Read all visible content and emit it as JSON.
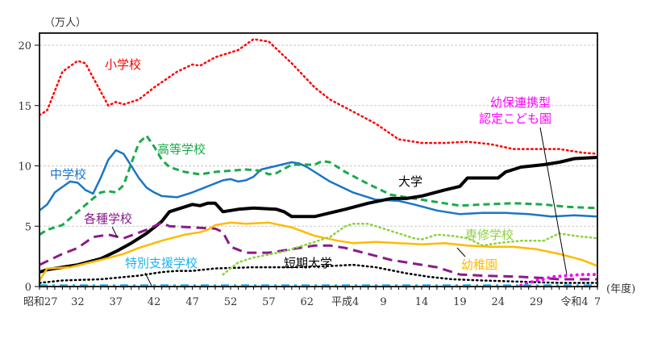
{
  "chart_data": {
    "type": "line",
    "unit_label": "（万人）",
    "x_unit_label": "(年度)",
    "ylim": [
      0,
      21
    ],
    "xlim": [
      1952,
      2025
    ],
    "grid": true,
    "yticks": [
      0,
      5,
      10,
      15,
      20
    ],
    "xticks": [
      {
        "year": 1952,
        "label": "昭和27"
      },
      {
        "year": 1957,
        "label": "32"
      },
      {
        "year": 1962,
        "label": "37"
      },
      {
        "year": 1967,
        "label": "42"
      },
      {
        "year": 1972,
        "label": "47"
      },
      {
        "year": 1977,
        "label": "52"
      },
      {
        "year": 1982,
        "label": "57"
      },
      {
        "year": 1987,
        "label": "62"
      },
      {
        "year": 1992,
        "label": "平成4"
      },
      {
        "year": 1997,
        "label": "9"
      },
      {
        "year": 2002,
        "label": "14"
      },
      {
        "year": 2007,
        "label": "19"
      },
      {
        "year": 2012,
        "label": "24"
      },
      {
        "year": 2017,
        "label": "29"
      },
      {
        "year": 2022,
        "label": "令和4"
      },
      {
        "year": 2025,
        "label": "7"
      }
    ],
    "series": [
      {
        "name": "小学校",
        "color": "#ff0000",
        "style": "dotted",
        "points": [
          [
            1952,
            14.2
          ],
          [
            1953,
            14.6
          ],
          [
            1955,
            17.8
          ],
          [
            1957,
            18.7
          ],
          [
            1958,
            18.5
          ],
          [
            1961,
            15.0
          ],
          [
            1962,
            15.3
          ],
          [
            1963,
            15.1
          ],
          [
            1965,
            15.5
          ],
          [
            1967,
            16.5
          ],
          [
            1970,
            17.8
          ],
          [
            1972,
            18.4
          ],
          [
            1973,
            18.3
          ],
          [
            1975,
            19.0
          ],
          [
            1978,
            19.6
          ],
          [
            1980,
            20.5
          ],
          [
            1982,
            20.3
          ],
          [
            1985,
            18.5
          ],
          [
            1988,
            16.5
          ],
          [
            1990,
            15.5
          ],
          [
            1993,
            14.5
          ],
          [
            1996,
            13.5
          ],
          [
            1999,
            12.2
          ],
          [
            2002,
            11.9
          ],
          [
            2005,
            11.9
          ],
          [
            2008,
            12.0
          ],
          [
            2011,
            11.8
          ],
          [
            2014,
            11.4
          ],
          [
            2017,
            11.4
          ],
          [
            2020,
            11.4
          ],
          [
            2023,
            11.1
          ],
          [
            2025,
            11.0
          ]
        ]
      },
      {
        "name": "中学校",
        "color": "#1a75c7",
        "style": "solid",
        "points": [
          [
            1952,
            6.3
          ],
          [
            1953,
            6.8
          ],
          [
            1954,
            7.8
          ],
          [
            1956,
            8.7
          ],
          [
            1957,
            8.6
          ],
          [
            1958,
            8.0
          ],
          [
            1959,
            7.7
          ],
          [
            1960,
            9.0
          ],
          [
            1961,
            10.5
          ],
          [
            1962,
            11.3
          ],
          [
            1963,
            11.0
          ],
          [
            1964,
            10.0
          ],
          [
            1965,
            9.0
          ],
          [
            1966,
            8.2
          ],
          [
            1967,
            7.8
          ],
          [
            1968,
            7.5
          ],
          [
            1970,
            7.4
          ],
          [
            1972,
            7.8
          ],
          [
            1974,
            8.3
          ],
          [
            1976,
            8.8
          ],
          [
            1977,
            8.9
          ],
          [
            1978,
            8.7
          ],
          [
            1979,
            8.8
          ],
          [
            1980,
            9.1
          ],
          [
            1981,
            9.7
          ],
          [
            1983,
            10.0
          ],
          [
            1985,
            10.3
          ],
          [
            1986,
            10.2
          ],
          [
            1987,
            9.9
          ],
          [
            1988,
            9.5
          ],
          [
            1990,
            8.7
          ],
          [
            1993,
            7.8
          ],
          [
            1996,
            7.2
          ],
          [
            1999,
            7.1
          ],
          [
            2001,
            6.8
          ],
          [
            2004,
            6.3
          ],
          [
            2007,
            6.0
          ],
          [
            2010,
            6.1
          ],
          [
            2013,
            6.1
          ],
          [
            2016,
            6.0
          ],
          [
            2019,
            5.8
          ],
          [
            2022,
            5.9
          ],
          [
            2025,
            5.8
          ]
        ]
      },
      {
        "name": "高等学校",
        "color": "#1aaa4a",
        "style": "dashed",
        "points": [
          [
            1952,
            4.3
          ],
          [
            1953,
            4.7
          ],
          [
            1955,
            5.1
          ],
          [
            1957,
            6.2
          ],
          [
            1959,
            7.3
          ],
          [
            1960,
            7.8
          ],
          [
            1961,
            7.9
          ],
          [
            1962,
            7.8
          ],
          [
            1963,
            8.4
          ],
          [
            1964,
            10.2
          ],
          [
            1965,
            11.9
          ],
          [
            1966,
            12.5
          ],
          [
            1967,
            11.6
          ],
          [
            1968,
            10.5
          ],
          [
            1969,
            9.9
          ],
          [
            1971,
            9.5
          ],
          [
            1973,
            9.3
          ],
          [
            1975,
            9.5
          ],
          [
            1979,
            9.7
          ],
          [
            1981,
            9.6
          ],
          [
            1982,
            9.3
          ],
          [
            1983,
            9.4
          ],
          [
            1985,
            10.1
          ],
          [
            1988,
            10.1
          ],
          [
            1989,
            10.4
          ],
          [
            1990,
            10.3
          ],
          [
            1992,
            9.5
          ],
          [
            1995,
            8.5
          ],
          [
            1998,
            7.6
          ],
          [
            2001,
            7.3
          ],
          [
            2004,
            7.0
          ],
          [
            2007,
            6.7
          ],
          [
            2010,
            6.8
          ],
          [
            2014,
            6.9
          ],
          [
            2018,
            6.8
          ],
          [
            2021,
            6.6
          ],
          [
            2025,
            6.5
          ]
        ]
      },
      {
        "name": "大学",
        "color": "#000000",
        "style": "thick",
        "points": [
          [
            1952,
            1.2
          ],
          [
            1953,
            1.4
          ],
          [
            1955,
            1.6
          ],
          [
            1957,
            1.8
          ],
          [
            1960,
            2.3
          ],
          [
            1962,
            2.9
          ],
          [
            1964,
            3.6
          ],
          [
            1966,
            4.4
          ],
          [
            1968,
            5.4
          ],
          [
            1969,
            6.2
          ],
          [
            1970,
            6.4
          ],
          [
            1971,
            6.6
          ],
          [
            1972,
            6.8
          ],
          [
            1973,
            6.7
          ],
          [
            1974,
            6.9
          ],
          [
            1975,
            6.9
          ],
          [
            1976,
            6.2
          ],
          [
            1978,
            6.4
          ],
          [
            1980,
            6.5
          ],
          [
            1983,
            6.4
          ],
          [
            1984,
            6.2
          ],
          [
            1985,
            5.8
          ],
          [
            1988,
            5.8
          ],
          [
            1990,
            6.1
          ],
          [
            1992,
            6.4
          ],
          [
            1995,
            6.9
          ],
          [
            1998,
            7.3
          ],
          [
            2000,
            7.3
          ],
          [
            2002,
            7.5
          ],
          [
            2005,
            8.0
          ],
          [
            2007,
            8.3
          ],
          [
            2008,
            9.0
          ],
          [
            2010,
            9.0
          ],
          [
            2012,
            9.0
          ],
          [
            2013,
            9.5
          ],
          [
            2015,
            9.9
          ],
          [
            2018,
            10.1
          ],
          [
            2020,
            10.3
          ],
          [
            2022,
            10.6
          ],
          [
            2025,
            10.7
          ]
        ]
      },
      {
        "name": "各種学校",
        "color": "#8b1a8b",
        "style": "longdash",
        "points": [
          [
            1952,
            1.8
          ],
          [
            1955,
            2.7
          ],
          [
            1957,
            3.2
          ],
          [
            1959,
            4.1
          ],
          [
            1961,
            4.3
          ],
          [
            1963,
            4.0
          ],
          [
            1966,
            4.7
          ],
          [
            1968,
            5.3
          ],
          [
            1969,
            5.0
          ],
          [
            1972,
            4.9
          ],
          [
            1975,
            4.8
          ],
          [
            1976,
            4.5
          ],
          [
            1977,
            3.3
          ],
          [
            1979,
            2.8
          ],
          [
            1982,
            2.8
          ],
          [
            1985,
            3.1
          ],
          [
            1988,
            3.4
          ],
          [
            1990,
            3.4
          ],
          [
            1992,
            3.2
          ],
          [
            1995,
            2.7
          ],
          [
            1998,
            2.2
          ],
          [
            2001,
            1.9
          ],
          [
            2004,
            1.6
          ],
          [
            2006,
            1.2
          ],
          [
            2007,
            1.0
          ],
          [
            2010,
            0.9
          ],
          [
            2015,
            0.8
          ],
          [
            2018,
            0.7
          ],
          [
            2020,
            0.6
          ],
          [
            2025,
            0.6
          ]
        ]
      },
      {
        "name": "幼稚園",
        "color": "#ffba00",
        "style": "solid",
        "points": [
          [
            1952,
            0.5
          ],
          [
            1953,
            1.5
          ],
          [
            1956,
            1.6
          ],
          [
            1960,
            2.2
          ],
          [
            1963,
            2.7
          ],
          [
            1965,
            3.2
          ],
          [
            1968,
            3.8
          ],
          [
            1971,
            4.3
          ],
          [
            1973,
            4.5
          ],
          [
            1974,
            4.7
          ],
          [
            1975,
            5.1
          ],
          [
            1977,
            5.3
          ],
          [
            1979,
            5.2
          ],
          [
            1982,
            5.3
          ],
          [
            1985,
            4.9
          ],
          [
            1988,
            4.2
          ],
          [
            1991,
            3.8
          ],
          [
            1993,
            3.6
          ],
          [
            1996,
            3.7
          ],
          [
            1999,
            3.6
          ],
          [
            2002,
            3.5
          ],
          [
            2005,
            3.6
          ],
          [
            2008,
            3.4
          ],
          [
            2011,
            3.3
          ],
          [
            2014,
            3.3
          ],
          [
            2017,
            3.1
          ],
          [
            2020,
            2.7
          ],
          [
            2023,
            2.2
          ],
          [
            2025,
            1.7
          ]
        ]
      },
      {
        "name": "短期大学",
        "color": "#000000",
        "style": "dotted",
        "points": [
          [
            1952,
            0.3
          ],
          [
            1955,
            0.5
          ],
          [
            1960,
            0.6
          ],
          [
            1965,
            0.9
          ],
          [
            1968,
            1.2
          ],
          [
            1970,
            1.3
          ],
          [
            1972,
            1.3
          ],
          [
            1975,
            1.5
          ],
          [
            1980,
            1.6
          ],
          [
            1985,
            1.6
          ],
          [
            1990,
            1.7
          ],
          [
            1993,
            1.8
          ],
          [
            1996,
            1.6
          ],
          [
            2000,
            1.1
          ],
          [
            2003,
            0.8
          ],
          [
            2006,
            0.6
          ],
          [
            2010,
            0.5
          ],
          [
            2015,
            0.4
          ],
          [
            2020,
            0.3
          ],
          [
            2025,
            0.3
          ]
        ]
      },
      {
        "name": "専修学校",
        "color": "#8cd23c",
        "style": "dotted",
        "points": [
          [
            1976,
            1.0
          ],
          [
            1978,
            2.0
          ],
          [
            1980,
            2.4
          ],
          [
            1984,
            2.9
          ],
          [
            1987,
            3.5
          ],
          [
            1990,
            4.1
          ],
          [
            1992,
            5.0
          ],
          [
            1993,
            5.2
          ],
          [
            1995,
            5.2
          ],
          [
            1997,
            4.8
          ],
          [
            1999,
            4.4
          ],
          [
            2001,
            4.0
          ],
          [
            2002,
            3.9
          ],
          [
            2004,
            4.3
          ],
          [
            2006,
            4.2
          ],
          [
            2008,
            4.0
          ],
          [
            2010,
            3.4
          ],
          [
            2012,
            3.6
          ],
          [
            2015,
            3.8
          ],
          [
            2018,
            3.8
          ],
          [
            2020,
            4.4
          ],
          [
            2022,
            4.2
          ],
          [
            2025,
            4.0
          ]
        ]
      },
      {
        "name": "幼保連携型 認定こども園",
        "color": "#ff00ff",
        "style": "bigdot",
        "points": [
          [
            2015,
            0.1
          ],
          [
            2016,
            0.3
          ],
          [
            2017,
            0.5
          ],
          [
            2018,
            0.6
          ],
          [
            2019,
            0.8
          ],
          [
            2021,
            0.9
          ],
          [
            2023,
            1.0
          ],
          [
            2025,
            1.0
          ]
        ]
      },
      {
        "name": "特別支援学校",
        "color": "#1ab4f0",
        "style": "dashdot",
        "points": [
          [
            1952,
            0.05
          ],
          [
            2025,
            0.05
          ]
        ]
      }
    ],
    "labels": {
      "s0": "小学校",
      "s1": "中学校",
      "s2": "高等学校",
      "s3": "大学",
      "s4": "各種学校",
      "s5": "幼稚園",
      "s6": "短期大学",
      "s7": "専修学校",
      "s8a": "幼保連携型",
      "s8b": "認定こども園",
      "s9": "特別支援学校"
    }
  }
}
